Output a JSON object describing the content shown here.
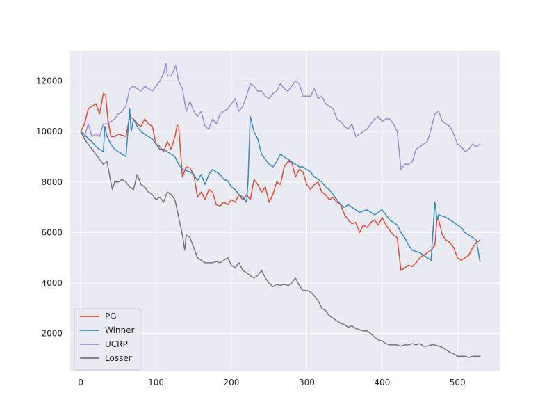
{
  "chart_data": {
    "type": "line",
    "title": "",
    "xlabel": "",
    "ylabel": "",
    "xlim": [
      -14,
      557
    ],
    "ylim": [
      500,
      13200
    ],
    "xticks": [
      0,
      100,
      200,
      300,
      400,
      500
    ],
    "yticks": [
      2000,
      4000,
      6000,
      8000,
      10000,
      12000
    ],
    "grid": true,
    "legend_position": "lower-left",
    "series": [
      {
        "name": "PG",
        "color": "#e24a33",
        "x": [
          0,
          5,
          10,
          15,
          20,
          25,
          30,
          33,
          36,
          40,
          45,
          50,
          55,
          60,
          65,
          70,
          75,
          80,
          85,
          90,
          95,
          100,
          105,
          110,
          115,
          120,
          125,
          128,
          130,
          135,
          140,
          145,
          150,
          155,
          160,
          165,
          170,
          175,
          180,
          185,
          190,
          195,
          200,
          205,
          210,
          215,
          220,
          225,
          230,
          235,
          240,
          245,
          250,
          255,
          260,
          265,
          270,
          275,
          280,
          285,
          290,
          295,
          300,
          305,
          310,
          315,
          320,
          325,
          330,
          335,
          340,
          345,
          350,
          355,
          360,
          365,
          370,
          375,
          380,
          385,
          390,
          395,
          400,
          405,
          410,
          415,
          420,
          425,
          430,
          435,
          440,
          445,
          450,
          455,
          460,
          465,
          470,
          473,
          475,
          480,
          485,
          490,
          495,
          500,
          505,
          510,
          515,
          520,
          525,
          530
        ],
        "values": [
          10000,
          10300,
          10900,
          11000,
          11100,
          10700,
          11500,
          11450,
          10500,
          9800,
          9800,
          9900,
          9850,
          9800,
          10600,
          10500,
          10300,
          10200,
          10500,
          10300,
          10200,
          9500,
          9400,
          9200,
          9600,
          9300,
          9800,
          10250,
          10200,
          8200,
          8600,
          8550,
          8300,
          7400,
          7600,
          7300,
          7700,
          7600,
          7100,
          7050,
          7200,
          7100,
          7300,
          7200,
          7500,
          7300,
          7500,
          7300,
          8100,
          7900,
          7600,
          7800,
          7200,
          7500,
          8000,
          7900,
          8600,
          8800,
          8800,
          8200,
          8500,
          8400,
          7900,
          7700,
          7900,
          8000,
          7600,
          7500,
          7300,
          7400,
          7200,
          7100,
          6700,
          6500,
          6350,
          6400,
          6000,
          6300,
          6200,
          6400,
          6500,
          6300,
          6600,
          6300,
          6100,
          5900,
          5800,
          4500,
          4600,
          4700,
          4650,
          4800,
          5000,
          5100,
          5200,
          5300,
          5500,
          6600,
          6500,
          5900,
          5700,
          5600,
          5400,
          5000,
          4900,
          5000,
          5100,
          5400,
          5600,
          5700
        ]
      },
      {
        "name": "Winner",
        "color": "#348abd",
        "x": [
          0,
          5,
          10,
          15,
          20,
          25,
          30,
          32,
          35,
          40,
          45,
          50,
          55,
          60,
          65,
          67,
          70,
          75,
          80,
          85,
          90,
          95,
          100,
          105,
          110,
          115,
          120,
          125,
          130,
          135,
          140,
          145,
          150,
          155,
          160,
          165,
          170,
          175,
          180,
          185,
          190,
          195,
          200,
          205,
          210,
          215,
          220,
          222,
          225,
          230,
          235,
          240,
          245,
          250,
          255,
          260,
          265,
          270,
          275,
          280,
          285,
          290,
          295,
          300,
          305,
          310,
          315,
          320,
          325,
          330,
          335,
          340,
          345,
          350,
          355,
          360,
          365,
          370,
          375,
          380,
          385,
          390,
          395,
          400,
          405,
          410,
          415,
          420,
          425,
          430,
          435,
          440,
          445,
          450,
          455,
          460,
          465,
          470,
          473,
          475,
          480,
          485,
          490,
          495,
          500,
          505,
          510,
          515,
          520,
          525,
          530
        ],
        "values": [
          10000,
          9900,
          9700,
          9600,
          9400,
          9300,
          9200,
          10200,
          9800,
          9500,
          9300,
          9200,
          9100,
          9000,
          10900,
          10000,
          10500,
          10200,
          10000,
          9900,
          9800,
          9700,
          9500,
          9300,
          9300,
          9200,
          9100,
          9000,
          8700,
          8500,
          8450,
          8400,
          8300,
          8050,
          8300,
          7900,
          8300,
          8500,
          8400,
          8300,
          8100,
          8050,
          7800,
          7700,
          7500,
          7400,
          7200,
          8000,
          10600,
          10000,
          9700,
          9100,
          8900,
          8700,
          8600,
          8800,
          9100,
          9000,
          8900,
          8800,
          8700,
          8600,
          8600,
          8500,
          8400,
          8200,
          8100,
          8000,
          7800,
          7700,
          7500,
          7300,
          7100,
          7000,
          7100,
          7000,
          6900,
          6800,
          6850,
          6900,
          6800,
          6700,
          6800,
          6900,
          6700,
          6500,
          6400,
          6300,
          6000,
          5800,
          5500,
          5300,
          5250,
          5200,
          5100,
          5000,
          4900,
          7200,
          6500,
          6700,
          6650,
          6600,
          6500,
          6400,
          6300,
          6200,
          6000,
          5900,
          5800,
          5700,
          4850
        ]
      },
      {
        "name": "UCRP",
        "color": "#988ed5",
        "x": [
          0,
          5,
          10,
          15,
          20,
          25,
          30,
          35,
          40,
          45,
          50,
          55,
          60,
          65,
          70,
          75,
          80,
          85,
          90,
          95,
          100,
          105,
          110,
          113,
          115,
          120,
          126,
          130,
          135,
          140,
          145,
          150,
          155,
          160,
          165,
          170,
          175,
          180,
          185,
          190,
          195,
          200,
          205,
          210,
          215,
          220,
          225,
          230,
          235,
          240,
          245,
          250,
          255,
          260,
          265,
          270,
          275,
          280,
          285,
          290,
          295,
          300,
          305,
          310,
          315,
          320,
          325,
          330,
          335,
          340,
          345,
          350,
          355,
          360,
          365,
          370,
          375,
          380,
          385,
          390,
          395,
          400,
          405,
          410,
          415,
          420,
          425,
          430,
          435,
          440,
          445,
          450,
          455,
          460,
          465,
          470,
          475,
          480,
          485,
          490,
          495,
          500,
          505,
          510,
          515,
          520,
          525,
          530
        ],
        "values": [
          10000,
          9800,
          10300,
          9800,
          9900,
          9800,
          10300,
          10300,
          10400,
          10500,
          10700,
          10800,
          11000,
          11700,
          11800,
          11700,
          11600,
          11800,
          11700,
          11600,
          11800,
          12000,
          12300,
          12700,
          12200,
          12200,
          12600,
          12000,
          11700,
          10800,
          11200,
          10800,
          10600,
          10800,
          10200,
          10100,
          10500,
          10300,
          10700,
          10800,
          10900,
          11100,
          11300,
          10800,
          11000,
          11400,
          11900,
          11800,
          11600,
          11600,
          11400,
          11300,
          11500,
          11600,
          11900,
          11700,
          11600,
          11800,
          12000,
          11900,
          11400,
          11400,
          11400,
          11700,
          11300,
          11400,
          11100,
          11000,
          10900,
          10500,
          10400,
          10200,
          10100,
          10300,
          9800,
          9900,
          10000,
          10100,
          10300,
          10500,
          10600,
          10400,
          10500,
          10500,
          10300,
          10000,
          8500,
          8700,
          8700,
          8800,
          9300,
          9400,
          9500,
          9600,
          10100,
          10700,
          10800,
          10400,
          10300,
          10200,
          9900,
          9500,
          9400,
          9200,
          9300,
          9500,
          9400,
          9500
        ]
      },
      {
        "name": "Losser",
        "color": "#777777",
        "x": [
          0,
          5,
          10,
          15,
          20,
          25,
          30,
          35,
          40,
          42,
          45,
          50,
          55,
          60,
          65,
          70,
          75,
          80,
          85,
          90,
          95,
          100,
          105,
          110,
          115,
          120,
          125,
          130,
          135,
          138,
          140,
          145,
          150,
          155,
          160,
          165,
          170,
          175,
          180,
          185,
          190,
          195,
          200,
          205,
          210,
          215,
          220,
          225,
          230,
          235,
          240,
          245,
          250,
          255,
          260,
          265,
          270,
          275,
          280,
          285,
          290,
          295,
          300,
          305,
          310,
          315,
          320,
          325,
          330,
          335,
          340,
          345,
          350,
          355,
          360,
          365,
          370,
          375,
          380,
          385,
          390,
          395,
          400,
          405,
          410,
          415,
          420,
          425,
          430,
          435,
          440,
          445,
          450,
          455,
          460,
          465,
          470,
          475,
          480,
          485,
          490,
          495,
          500,
          505,
          510,
          515,
          520,
          525,
          530
        ],
        "values": [
          10000,
          9700,
          9500,
          9300,
          9100,
          8900,
          8700,
          8800,
          8000,
          7700,
          8000,
          8000,
          8100,
          8000,
          7800,
          7700,
          8300,
          7900,
          7800,
          7600,
          7500,
          7300,
          7400,
          7200,
          7600,
          7500,
          7300,
          6600,
          5900,
          5300,
          5900,
          5800,
          5400,
          5000,
          4900,
          4800,
          4800,
          4800,
          4850,
          4800,
          4900,
          5000,
          4700,
          4600,
          4800,
          4500,
          4400,
          4300,
          4200,
          4300,
          4500,
          4200,
          4000,
          3850,
          3950,
          3900,
          3950,
          3900,
          4000,
          4200,
          3900,
          3700,
          3700,
          3650,
          3500,
          3300,
          3000,
          2900,
          2700,
          2600,
          2500,
          2400,
          2350,
          2250,
          2300,
          2200,
          2150,
          2100,
          2100,
          2000,
          1850,
          1750,
          1700,
          1600,
          1550,
          1550,
          1550,
          1500,
          1550,
          1550,
          1600,
          1550,
          1600,
          1500,
          1500,
          1550,
          1550,
          1500,
          1450,
          1350,
          1250,
          1200,
          1100,
          1100,
          1100,
          1050,
          1100,
          1100,
          1100
        ]
      }
    ]
  }
}
